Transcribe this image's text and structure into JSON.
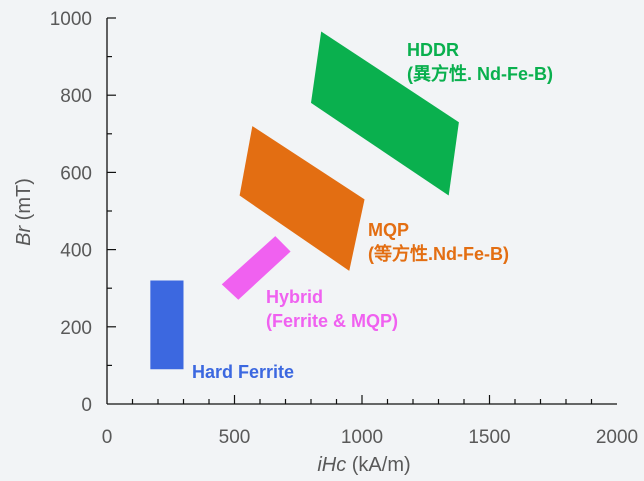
{
  "chart_data": {
    "type": "region",
    "xlabel": {
      "italic": "iHc",
      "rest": " (kA/m)"
    },
    "ylabel": {
      "italic": "Br",
      "rest": " (mT)"
    },
    "xlim": [
      0,
      2000
    ],
    "ylim": [
      0,
      1000
    ],
    "x_ticks": [
      0,
      500,
      1000,
      1500,
      2000
    ],
    "y_ticks": [
      0,
      200,
      400,
      600,
      800,
      1000
    ],
    "x_tick_labels": [
      "0",
      "500",
      "1000",
      "1500",
      "2000"
    ],
    "y_tick_labels": [
      "0",
      "200",
      "400",
      "600",
      "800",
      "1000"
    ],
    "grid": false,
    "regions": [
      {
        "key": "hard-ferrite",
        "color": "#3c68e0",
        "label_lines": [
          "Hard Ferrite"
        ],
        "polygon": [
          [
            170,
            320
          ],
          [
            300,
            320
          ],
          [
            300,
            90
          ],
          [
            170,
            90
          ]
        ]
      },
      {
        "key": "hybrid",
        "color": "#f061f0",
        "label_lines": [
          "Hybrid",
          "(Ferrite & MQP)"
        ],
        "polygon": [
          [
            660,
            435
          ],
          [
            720,
            395
          ],
          [
            515,
            270
          ],
          [
            450,
            310
          ]
        ]
      },
      {
        "key": "mqp",
        "color": "#e36e12",
        "label_lines": [
          "MQP",
          "(等方性.Nd-Fe-B)"
        ],
        "polygon": [
          [
            570,
            720
          ],
          [
            1010,
            530
          ],
          [
            950,
            345
          ],
          [
            520,
            540
          ]
        ]
      },
      {
        "key": "hddr",
        "color": "#0ab04e",
        "label_lines": [
          "HDDR",
          "(異方性. Nd-Fe-B)"
        ],
        "polygon": [
          [
            840,
            965
          ],
          [
            1380,
            730
          ],
          [
            1340,
            540
          ],
          [
            800,
            780
          ]
        ]
      }
    ]
  }
}
